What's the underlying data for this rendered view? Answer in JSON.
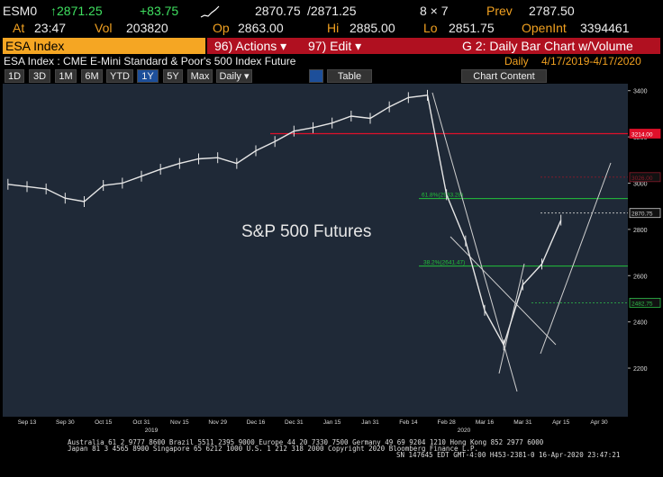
{
  "header": {
    "ticker": "ESM0",
    "last": "↑2871.25",
    "change": "+83.75",
    "bid": "2870.75",
    "ask": "/2871.25",
    "size": "8 × 7",
    "prev_label": "Prev",
    "prev": "2787.50",
    "at_label": "At",
    "time": "23:47",
    "vol_label": "Vol",
    "vol": "203820",
    "op_label": "Op",
    "op": "2863.00",
    "hi_label": "Hi",
    "hi": "2885.00",
    "lo_label": "Lo",
    "lo": "2851.75",
    "oi_label": "OpenInt",
    "oi": "3394461"
  },
  "toolbar": {
    "security": "ESA Index",
    "actions": "96) Actions ▾",
    "edit": "97) Edit ▾",
    "function": "G 2: Daily Bar Chart w/Volume"
  },
  "subheader": {
    "description": "ESA Index : CME E-Mini Standard & Poor's 500 Index Future",
    "period": "Daily",
    "range": "4/17/2019-4/17/2020"
  },
  "buttons": [
    "1D",
    "3D",
    "1M",
    "6M",
    "YTD",
    "1Y",
    "5Y",
    "Max",
    "Daily ▾"
  ],
  "table_button": "Table",
  "chart_content_button": "Chart Content",
  "chart_data": {
    "type": "line",
    "annotation": "S&P 500 Futures",
    "color": "#e6e6e6",
    "categories": [
      null,
      "Sep 13",
      null,
      "Sep 30",
      null,
      "Oct 15",
      null,
      "Oct 31",
      null,
      "Nov 15",
      null,
      "Nov 29",
      null,
      "Dec 16",
      null,
      "Dec 31",
      null,
      "Jan 15",
      null,
      "Jan 31",
      null,
      "Feb 14",
      null,
      "Feb 28",
      null,
      "Mar 16",
      null,
      "Mar 31",
      null,
      "Apr 15",
      null,
      "Apr 30",
      null
    ],
    "values": [
      2995,
      2985,
      2975,
      2935,
      2920,
      2990,
      3000,
      3030,
      3060,
      3085,
      3105,
      3110,
      3085,
      3140,
      3180,
      3225,
      3240,
      3260,
      3290,
      3280,
      3330,
      3370,
      3380,
      2950,
      2750,
      2450,
      2300,
      2560,
      2650,
      2840,
      null,
      null,
      null
    ],
    "year_labels": [
      "2019",
      "2020"
    ],
    "ylim": [
      1990,
      3430
    ],
    "yticks": [
      2200,
      2400,
      2600,
      2800,
      3000,
      3200,
      3400
    ],
    "levels": [
      {
        "value": 3214,
        "label": "3214.00",
        "color": "#e0102a"
      },
      {
        "value": 3026,
        "label": "3026.00",
        "color": "#8a1a2a"
      },
      {
        "value": 2870.75,
        "label": "2870.75",
        "color": "#cfcfcf"
      },
      {
        "value": 2482.75,
        "label": "2482.75",
        "color": "#2fbf4a"
      }
    ],
    "fib_levels": [
      {
        "value": 2933.28,
        "label": "61.8%(2933.28)",
        "color": "#22c13a"
      },
      {
        "value": 2641.47,
        "label": "38.2%(2641.47)",
        "color": "#22c13a"
      }
    ]
  },
  "footer": [
    "Australia 61 2 9777 8600 Brazil 5511 2395 9000 Europe 44 20 7330 7500 Germany 49 69 9204 1210 Hong Kong 852 2977 6000",
    "Japan 81 3 4565 8900 Singapore 65 6212 1000 U.S. 1 212 318 2000 Copyright 2020 Bloomberg Finance L.P.",
    "SN 147645 EDT GMT-4:00 H453-2381-0 16-Apr-2020 23:47:21"
  ]
}
